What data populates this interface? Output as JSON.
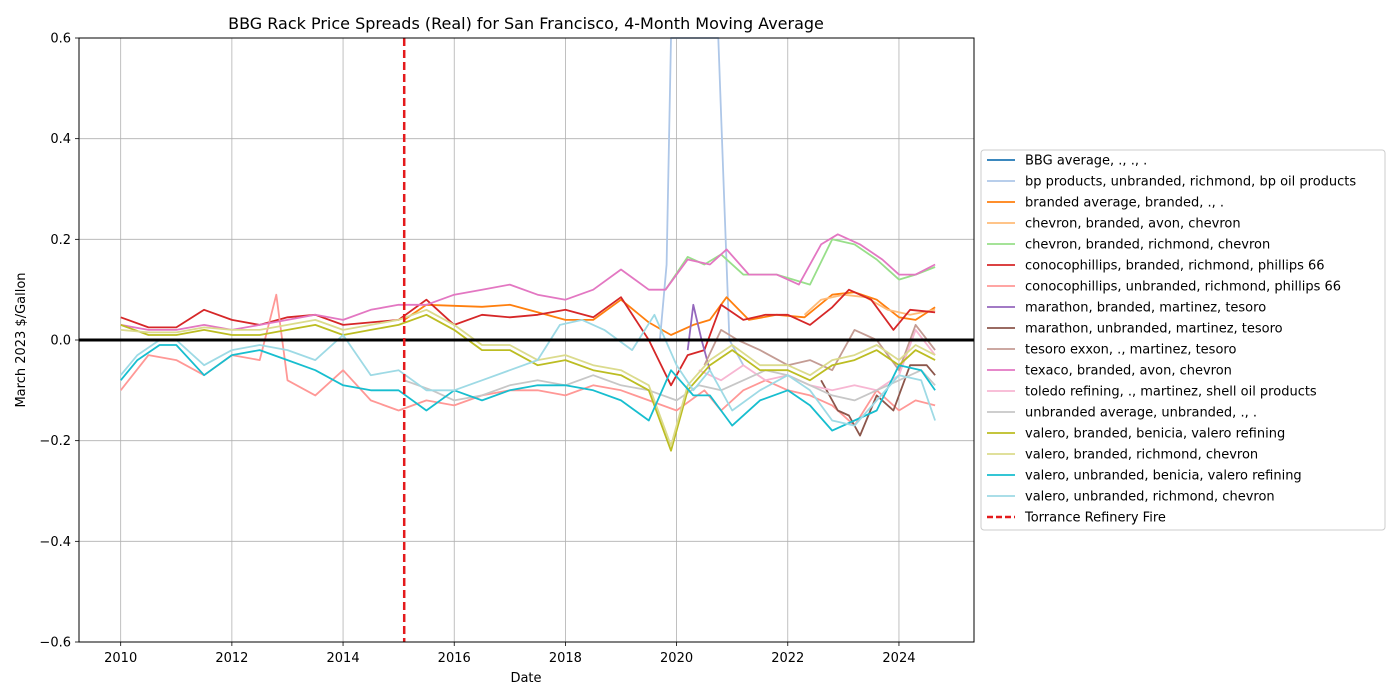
{
  "chart_data": {
    "type": "line",
    "title": "BBG Rack Price Spreads (Real) for San Francisco, 4-Month Moving Average",
    "xlabel": "Date",
    "ylabel": "March 2023 $/Gallon",
    "xlim": [
      2009.25,
      2025.35
    ],
    "ylim": [
      -0.6,
      0.6
    ],
    "x_ticks": [
      2010,
      2012,
      2014,
      2016,
      2018,
      2020,
      2022,
      2024
    ],
    "y_ticks": [
      -0.6,
      -0.4,
      -0.2,
      0.0,
      0.2,
      0.4,
      0.6
    ],
    "y_tick_labels": [
      "−0.6",
      "−0.4",
      "−0.2",
      "0.0",
      "0.2",
      "0.4",
      "0.6"
    ],
    "grid": true,
    "legend_position": "right, outside plot",
    "zero_line": {
      "y": 0.0,
      "color": "#000000"
    },
    "event_line": {
      "name": "Torrance Refinery Fire",
      "x": 2015.1,
      "color": "#e41a1c",
      "style": "dashed"
    },
    "series": [
      {
        "name": "BBG average, ., ., .",
        "color": "#1f77b4",
        "hidden": true,
        "x": [
          2010,
          2024.65
        ],
        "y": [
          0.0,
          0.0
        ]
      },
      {
        "name": "bp products, unbranded, richmond, bp oil products",
        "color": "#aec7e8",
        "x": [
          2019.7,
          2019.82,
          2019.9,
          2020.0,
          2020.5,
          2020.75,
          2020.85,
          2020.95,
          2021.2
        ],
        "y": [
          0.0,
          0.15,
          0.6,
          0.6,
          0.6,
          0.6,
          0.3,
          0.0,
          -0.05
        ]
      },
      {
        "name": "branded average, branded, ., .",
        "color": "#ff7f0e",
        "x": [
          2015.1,
          2015.5,
          2016.0,
          2016.5,
          2017.0,
          2017.5,
          2018.0,
          2018.5,
          2019.0,
          2019.5,
          2019.9,
          2020.3,
          2020.6,
          2020.9,
          2021.3,
          2021.8,
          2022.3,
          2022.8,
          2023.2,
          2023.6,
          2024.0,
          2024.3,
          2024.65
        ],
        "y": [
          0.04,
          0.07,
          0.068,
          0.066,
          0.07,
          0.055,
          0.04,
          0.04,
          0.08,
          0.035,
          0.01,
          0.03,
          0.04,
          0.085,
          0.04,
          0.05,
          0.045,
          0.09,
          0.095,
          0.08,
          0.045,
          0.04,
          0.065
        ]
      },
      {
        "name": "chevron, branded, avon, chevron",
        "color": "#ffbb78",
        "x": [
          2022.3,
          2022.6,
          2023.0,
          2023.4,
          2023.8,
          2024.2,
          2024.65
        ],
        "y": [
          0.05,
          0.08,
          0.09,
          0.085,
          0.06,
          0.05,
          0.06
        ]
      },
      {
        "name": "chevron, branded, richmond, chevron",
        "color": "#98df8a",
        "x": [
          2019.8,
          2020.2,
          2020.5,
          2020.8,
          2021.2,
          2021.8,
          2022.4,
          2022.8,
          2023.2,
          2023.6,
          2024.0,
          2024.3,
          2024.65
        ],
        "y": [
          0.1,
          0.165,
          0.15,
          0.17,
          0.13,
          0.13,
          0.11,
          0.2,
          0.19,
          0.16,
          0.12,
          0.13,
          0.145
        ]
      },
      {
        "name": "conocophillips, branded, richmond, phillips 66",
        "color": "#d62728",
        "x": [
          2010.0,
          2010.5,
          2011.0,
          2011.5,
          2012.0,
          2012.5,
          2013.0,
          2013.5,
          2014.0,
          2014.5,
          2015.0,
          2015.5,
          2016.0,
          2016.5,
          2017.0,
          2017.5,
          2018.0,
          2018.5,
          2019.0,
          2019.5,
          2019.9,
          2020.2,
          2020.5,
          2020.8,
          2021.2,
          2021.6,
          2022.0,
          2022.4,
          2022.8,
          2023.1,
          2023.5,
          2023.9,
          2024.2,
          2024.65
        ],
        "y": [
          0.045,
          0.025,
          0.025,
          0.06,
          0.04,
          0.03,
          0.045,
          0.05,
          0.03,
          0.035,
          0.04,
          0.08,
          0.03,
          0.05,
          0.045,
          0.05,
          0.06,
          0.045,
          0.085,
          0.0,
          -0.09,
          -0.03,
          -0.02,
          0.07,
          0.04,
          0.05,
          0.05,
          0.03,
          0.065,
          0.1,
          0.08,
          0.02,
          0.06,
          0.055
        ]
      },
      {
        "name": "conocophillips, unbranded, richmond, phillips 66",
        "color": "#ff9896",
        "x": [
          2010.0,
          2010.5,
          2011.0,
          2011.5,
          2012.0,
          2012.5,
          2012.8,
          2013.0,
          2013.5,
          2014.0,
          2014.5,
          2015.0,
          2015.5,
          2016.0,
          2016.5,
          2017.0,
          2017.5,
          2018.0,
          2018.5,
          2019.0,
          2019.5,
          2020.0,
          2020.5,
          2020.8,
          2021.2,
          2021.6,
          2022.0,
          2022.4,
          2022.8,
          2023.2,
          2023.6,
          2024.0,
          2024.3,
          2024.65
        ],
        "y": [
          -0.1,
          -0.03,
          -0.04,
          -0.07,
          -0.03,
          -0.04,
          0.09,
          -0.08,
          -0.11,
          -0.06,
          -0.12,
          -0.14,
          -0.12,
          -0.13,
          -0.11,
          -0.1,
          -0.1,
          -0.11,
          -0.09,
          -0.1,
          -0.12,
          -0.14,
          -0.1,
          -0.14,
          -0.1,
          -0.08,
          -0.1,
          -0.11,
          -0.13,
          -0.17,
          -0.1,
          -0.14,
          -0.12,
          -0.13
        ]
      },
      {
        "name": "marathon, branded, martinez, tesoro",
        "color": "#9467bd",
        "x": [
          2020.2,
          2020.3,
          2020.45,
          2020.6
        ],
        "y": [
          -0.02,
          0.07,
          0.0,
          -0.06
        ]
      },
      {
        "name": "marathon, unbranded, martinez, tesoro",
        "color": "#8c564b",
        "x": [
          2022.6,
          2022.9,
          2023.1,
          2023.3,
          2023.6,
          2023.9,
          2024.2,
          2024.5,
          2024.65
        ],
        "y": [
          -0.08,
          -0.14,
          -0.15,
          -0.19,
          -0.11,
          -0.14,
          -0.05,
          -0.05,
          -0.07
        ]
      },
      {
        "name": "tesoro exxon, ., martinez, tesoro",
        "color": "#c49c94",
        "x": [
          2020.5,
          2020.8,
          2021.1,
          2021.5,
          2022.0,
          2022.4,
          2022.8,
          2023.2,
          2023.6,
          2024.0,
          2024.3,
          2024.65
        ],
        "y": [
          -0.05,
          0.02,
          0.0,
          -0.02,
          -0.05,
          -0.04,
          -0.06,
          0.02,
          0.0,
          -0.06,
          0.03,
          -0.02
        ]
      },
      {
        "name": "texaco, branded, avon, chevron",
        "color": "#e377c2",
        "x": [
          2010.0,
          2010.5,
          2011.0,
          2011.5,
          2012.0,
          2012.5,
          2013.0,
          2013.5,
          2014.0,
          2014.5,
          2015.0,
          2015.5,
          2016.0,
          2016.5,
          2017.0,
          2017.5,
          2018.0,
          2018.5,
          2019.0,
          2019.5,
          2019.8,
          2020.2,
          2020.6,
          2020.9,
          2021.3,
          2021.8,
          2022.2,
          2022.6,
          2022.9,
          2023.3,
          2023.7,
          2024.0,
          2024.3,
          2024.65
        ],
        "y": [
          0.03,
          0.02,
          0.02,
          0.03,
          0.02,
          0.03,
          0.04,
          0.05,
          0.04,
          0.06,
          0.07,
          0.07,
          0.09,
          0.1,
          0.11,
          0.09,
          0.08,
          0.1,
          0.14,
          0.1,
          0.1,
          0.16,
          0.15,
          0.18,
          0.13,
          0.13,
          0.11,
          0.19,
          0.21,
          0.19,
          0.16,
          0.13,
          0.13,
          0.15
        ]
      },
      {
        "name": "toledo refining, ., martinez, shell oil products",
        "color": "#f7b6d2",
        "x": [
          2020.4,
          2020.8,
          2021.2,
          2021.6,
          2022.0,
          2022.4,
          2022.8,
          2023.2,
          2023.6,
          2024.0,
          2024.3,
          2024.65
        ],
        "y": [
          -0.06,
          -0.08,
          -0.05,
          -0.08,
          -0.07,
          -0.09,
          -0.1,
          -0.09,
          -0.1,
          -0.07,
          0.02,
          -0.03
        ]
      },
      {
        "name": "unbranded average, unbranded, ., .",
        "color": "#c7c7c7",
        "x": [
          2015.1,
          2015.6,
          2016.0,
          2016.5,
          2017.0,
          2017.5,
          2018.0,
          2018.5,
          2019.0,
          2019.5,
          2020.0,
          2020.4,
          2020.8,
          2021.2,
          2021.6,
          2022.0,
          2022.4,
          2022.8,
          2023.2,
          2023.6,
          2024.0,
          2024.4,
          2024.65
        ],
        "y": [
          -0.08,
          -0.1,
          -0.12,
          -0.11,
          -0.09,
          -0.08,
          -0.09,
          -0.07,
          -0.09,
          -0.1,
          -0.12,
          -0.09,
          -0.1,
          -0.08,
          -0.06,
          -0.07,
          -0.09,
          -0.11,
          -0.12,
          -0.1,
          -0.08,
          -0.06,
          -0.09
        ]
      },
      {
        "name": "valero, branded, benicia, valero refining",
        "color": "#bcbd22",
        "x": [
          2010.0,
          2010.5,
          2011.0,
          2011.5,
          2012.0,
          2012.5,
          2013.0,
          2013.5,
          2014.0,
          2014.5,
          2015.0,
          2015.5,
          2016.0,
          2016.5,
          2017.0,
          2017.5,
          2018.0,
          2018.5,
          2019.0,
          2019.5,
          2019.9,
          2020.2,
          2020.6,
          2021.0,
          2021.5,
          2022.0,
          2022.4,
          2022.8,
          2023.2,
          2023.6,
          2024.0,
          2024.3,
          2024.65
        ],
        "y": [
          0.03,
          0.01,
          0.01,
          0.02,
          0.01,
          0.01,
          0.02,
          0.03,
          0.01,
          0.02,
          0.03,
          0.05,
          0.02,
          -0.02,
          -0.02,
          -0.05,
          -0.04,
          -0.06,
          -0.07,
          -0.1,
          -0.22,
          -0.1,
          -0.05,
          -0.02,
          -0.06,
          -0.06,
          -0.08,
          -0.05,
          -0.04,
          -0.02,
          -0.05,
          -0.02,
          -0.04
        ]
      },
      {
        "name": "valero, branded, richmond, chevron",
        "color": "#dbdb8d",
        "x": [
          2010.0,
          2010.5,
          2011.0,
          2011.5,
          2012.0,
          2012.5,
          2013.0,
          2013.5,
          2014.0,
          2014.5,
          2015.0,
          2015.5,
          2016.0,
          2016.5,
          2017.0,
          2017.5,
          2018.0,
          2018.5,
          2019.0,
          2019.5,
          2019.9,
          2020.2,
          2020.6,
          2021.0,
          2021.5,
          2022.0,
          2022.4,
          2022.8,
          2023.2,
          2023.6,
          2024.0,
          2024.3,
          2024.65
        ],
        "y": [
          0.02,
          0.015,
          0.015,
          0.025,
          0.02,
          0.02,
          0.03,
          0.04,
          0.02,
          0.03,
          0.04,
          0.06,
          0.03,
          -0.01,
          -0.01,
          -0.04,
          -0.03,
          -0.05,
          -0.06,
          -0.09,
          -0.21,
          -0.09,
          -0.04,
          -0.01,
          -0.05,
          -0.05,
          -0.07,
          -0.04,
          -0.03,
          -0.01,
          -0.04,
          -0.01,
          -0.03
        ]
      },
      {
        "name": "valero, unbranded, benicia, valero refining",
        "color": "#17becf",
        "x": [
          2010.0,
          2010.3,
          2010.7,
          2011.0,
          2011.5,
          2012.0,
          2012.5,
          2013.0,
          2013.5,
          2014.0,
          2014.5,
          2015.0,
          2015.5,
          2016.0,
          2016.5,
          2017.0,
          2017.5,
          2018.0,
          2018.5,
          2019.0,
          2019.5,
          2019.9,
          2020.3,
          2020.6,
          2021.0,
          2021.5,
          2022.0,
          2022.4,
          2022.8,
          2023.2,
          2023.6,
          2024.0,
          2024.4,
          2024.65
        ],
        "y": [
          -0.08,
          -0.04,
          -0.01,
          -0.01,
          -0.07,
          -0.03,
          -0.02,
          -0.04,
          -0.06,
          -0.09,
          -0.1,
          -0.1,
          -0.14,
          -0.1,
          -0.12,
          -0.1,
          -0.09,
          -0.09,
          -0.1,
          -0.12,
          -0.16,
          -0.06,
          -0.11,
          -0.11,
          -0.17,
          -0.12,
          -0.1,
          -0.13,
          -0.18,
          -0.16,
          -0.14,
          -0.05,
          -0.06,
          -0.1
        ]
      },
      {
        "name": "valero, unbranded, richmond, chevron",
        "color": "#9edae5",
        "x": [
          2010.0,
          2010.3,
          2010.7,
          2011.0,
          2011.5,
          2012.0,
          2012.5,
          2013.0,
          2013.5,
          2014.0,
          2014.5,
          2015.0,
          2015.5,
          2016.0,
          2016.5,
          2017.0,
          2017.5,
          2017.9,
          2018.3,
          2018.7,
          2019.2,
          2019.6,
          2020.0,
          2020.3,
          2020.6,
          2021.0,
          2021.5,
          2022.0,
          2022.4,
          2022.8,
          2023.2,
          2023.6,
          2024.0,
          2024.4,
          2024.65
        ],
        "y": [
          -0.07,
          -0.03,
          0.0,
          0.0,
          -0.05,
          -0.02,
          -0.01,
          -0.02,
          -0.04,
          0.01,
          -0.07,
          -0.06,
          -0.1,
          -0.1,
          -0.08,
          -0.06,
          -0.04,
          0.03,
          0.04,
          0.02,
          -0.02,
          0.05,
          -0.05,
          -0.1,
          -0.06,
          -0.14,
          -0.1,
          -0.07,
          -0.1,
          -0.16,
          -0.17,
          -0.12,
          -0.07,
          -0.08,
          -0.16
        ]
      }
    ]
  }
}
